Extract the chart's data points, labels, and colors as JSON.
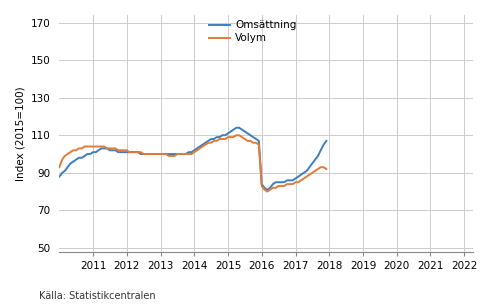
{
  "omsattning": [
    88,
    90,
    91,
    93,
    95,
    96,
    97,
    98,
    98,
    99,
    100,
    100,
    101,
    101,
    102,
    103,
    103,
    103,
    102,
    102,
    102,
    101,
    101,
    101,
    101,
    101,
    101,
    101,
    101,
    100,
    100,
    100,
    100,
    100,
    100,
    100,
    100,
    100,
    100,
    100,
    100,
    100,
    100,
    100,
    100,
    100,
    101,
    101,
    102,
    103,
    104,
    105,
    106,
    107,
    108,
    108,
    109,
    109,
    110,
    110,
    111,
    112,
    113,
    114,
    114,
    113,
    112,
    111,
    110,
    109,
    108,
    107,
    84,
    82,
    81,
    82,
    84,
    85,
    85,
    85,
    85,
    86,
    86,
    86,
    87,
    88,
    89,
    90,
    91,
    93,
    95,
    97,
    99,
    102,
    105,
    107
  ],
  "volym": [
    93,
    97,
    99,
    100,
    101,
    102,
    102,
    103,
    103,
    104,
    104,
    104,
    104,
    104,
    104,
    104,
    104,
    103,
    103,
    103,
    103,
    102,
    102,
    102,
    102,
    101,
    101,
    101,
    101,
    101,
    100,
    100,
    100,
    100,
    100,
    100,
    100,
    100,
    100,
    99,
    99,
    99,
    100,
    100,
    100,
    100,
    100,
    100,
    101,
    102,
    103,
    104,
    105,
    106,
    106,
    107,
    107,
    108,
    108,
    108,
    109,
    109,
    109,
    110,
    110,
    109,
    108,
    107,
    107,
    106,
    106,
    105,
    83,
    81,
    80,
    81,
    82,
    82,
    83,
    83,
    83,
    84,
    84,
    84,
    85,
    85,
    86,
    87,
    88,
    89,
    90,
    91,
    92,
    93,
    93,
    92
  ],
  "start_year": 2010,
  "start_month": 1,
  "n_points": 96,
  "omsattning_color": "#3c7ebf",
  "volym_color": "#e07b39",
  "ylabel": "Index (2015=100)",
  "yticks": [
    50,
    70,
    90,
    110,
    130,
    150,
    170
  ],
  "ylim": [
    48,
    174
  ],
  "xtick_years": [
    2011,
    2012,
    2013,
    2014,
    2015,
    2016,
    2017,
    2018,
    2019,
    2020,
    2021,
    2022
  ],
  "legend_omsattning": "Omsättning",
  "legend_volym": "Volym",
  "source": "Källa: Statistikcentralen",
  "bg_color": "#ffffff",
  "grid_color": "#cccccc",
  "line_width": 1.4
}
